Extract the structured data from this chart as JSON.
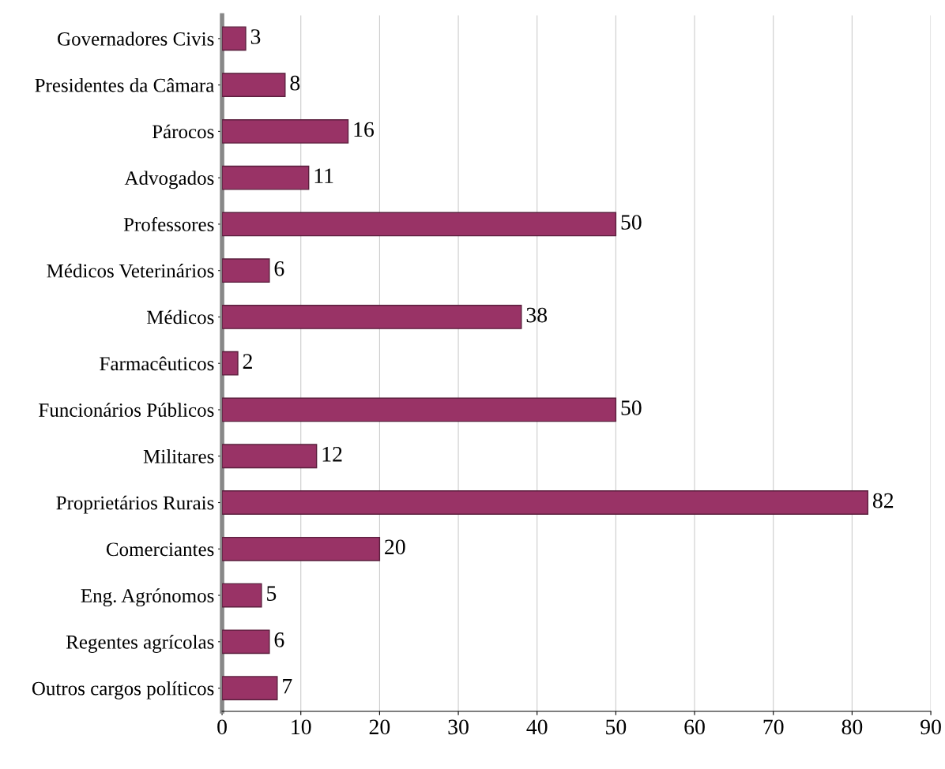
{
  "chart_data": {
    "type": "bar",
    "orientation": "horizontal",
    "categories": [
      "Governadores Civis",
      "Presidentes da Câmara",
      "Párocos",
      "Advogados",
      "Professores",
      "Médicos Veterinários",
      "Médicos",
      "Farmacêuticos",
      "Funcionários Públicos",
      "Militares",
      "Proprietários Rurais",
      "Comerciantes",
      "Eng. Agrónomos",
      "Regentes agrícolas",
      "Outros cargos políticos"
    ],
    "values": [
      3,
      8,
      16,
      11,
      50,
      6,
      38,
      2,
      50,
      12,
      82,
      20,
      5,
      6,
      7
    ],
    "color": "#993366",
    "xlim": [
      0,
      90
    ],
    "xticks": [
      0,
      10,
      20,
      30,
      40,
      50,
      60,
      70,
      80,
      90
    ],
    "grid": "x",
    "data_labels": true
  }
}
